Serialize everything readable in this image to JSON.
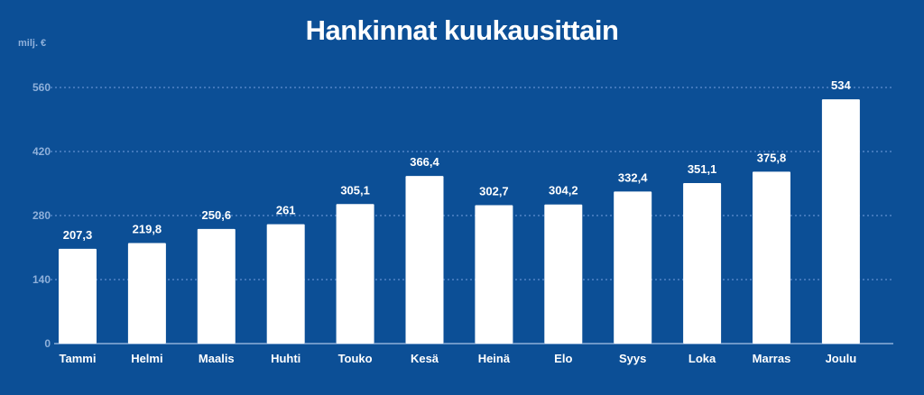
{
  "chart_data": {
    "type": "bar",
    "title": "Hankinnat kuukausittain",
    "ylabel": "milj. €",
    "xlabel": "",
    "categories": [
      "Tammi",
      "Helmi",
      "Maalis",
      "Huhti",
      "Touko",
      "Kesä",
      "Heinä",
      "Elo",
      "Syys",
      "Loka",
      "Marras",
      "Joulu"
    ],
    "values": [
      207.3,
      219.8,
      250.6,
      261,
      305.1,
      366.4,
      302.7,
      304.2,
      332.4,
      351.1,
      375.8,
      534
    ],
    "value_labels": [
      "207,3",
      "219,8",
      "250,6",
      "261",
      "305,1",
      "366,4",
      "302,7",
      "304,2",
      "332,4",
      "351,1",
      "375,8",
      "534"
    ],
    "yticks": [
      0,
      140,
      280,
      420,
      560
    ],
    "ylim": [
      0,
      560
    ],
    "grid": true,
    "colors": {
      "background": "#0c4f96",
      "bar": "#ffffff",
      "grid": "#5f8fd0",
      "tick_label": "#8fb0da",
      "text": "#ffffff"
    }
  }
}
